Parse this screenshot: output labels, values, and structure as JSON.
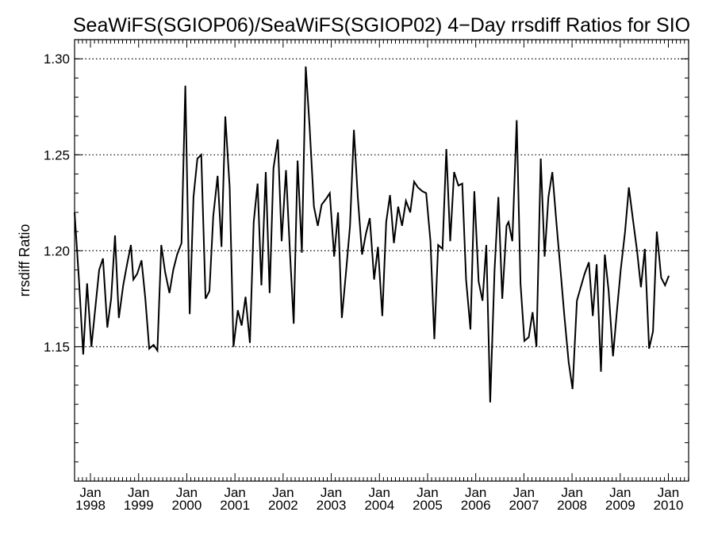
{
  "chart_data": {
    "type": "line",
    "title": "SeaWiFS(SGIOP06)/SeaWiFS(SGIOP02) 4−Day rrsdiff Ratios for SIO",
    "xlabel": "",
    "ylabel": "rrsdiff Ratio",
    "xlim": [
      1997.67,
      2010.42
    ],
    "ylim": [
      1.08,
      1.31
    ],
    "yticks": [
      {
        "value": 1.15,
        "label": "1.15"
      },
      {
        "value": 1.2,
        "label": "1.20"
      },
      {
        "value": 1.25,
        "label": "1.25"
      },
      {
        "value": 1.3,
        "label": "1.30"
      }
    ],
    "xticks": [
      {
        "value": 1998,
        "month": "Jan",
        "year": "1998"
      },
      {
        "value": 1999,
        "month": "Jan",
        "year": "1999"
      },
      {
        "value": 2000,
        "month": "Jan",
        "year": "2000"
      },
      {
        "value": 2001,
        "month": "Jan",
        "year": "2001"
      },
      {
        "value": 2002,
        "month": "Jan",
        "year": "2002"
      },
      {
        "value": 2003,
        "month": "Jan",
        "year": "2003"
      },
      {
        "value": 2004,
        "month": "Jan",
        "year": "2004"
      },
      {
        "value": 2005,
        "month": "Jan",
        "year": "2005"
      },
      {
        "value": 2006,
        "month": "Jan",
        "year": "2006"
      },
      {
        "value": 2007,
        "month": "Jan",
        "year": "2007"
      },
      {
        "value": 2008,
        "month": "Jan",
        "year": "2008"
      },
      {
        "value": 2009,
        "month": "Jan",
        "year": "2009"
      },
      {
        "value": 2010,
        "month": "Jan",
        "year": "2010"
      }
    ],
    "grid": "horizontal-dotted",
    "series": [
      {
        "color": "#000000",
        "points": [
          [
            1997.67,
            1.22
          ],
          [
            1997.76,
            1.185
          ],
          [
            1997.85,
            1.146
          ],
          [
            1997.93,
            1.183
          ],
          [
            1998.02,
            1.15
          ],
          [
            1998.1,
            1.17
          ],
          [
            1998.18,
            1.19
          ],
          [
            1998.26,
            1.196
          ],
          [
            1998.35,
            1.16
          ],
          [
            1998.43,
            1.175
          ],
          [
            1998.51,
            1.208
          ],
          [
            1998.59,
            1.165
          ],
          [
            1998.68,
            1.182
          ],
          [
            1998.76,
            1.193
          ],
          [
            1998.84,
            1.203
          ],
          [
            1998.89,
            1.185
          ],
          [
            1998.97,
            1.188
          ],
          [
            1999.06,
            1.195
          ],
          [
            1999.14,
            1.175
          ],
          [
            1999.22,
            1.149
          ],
          [
            1999.31,
            1.151
          ],
          [
            1999.39,
            1.148
          ],
          [
            1999.47,
            1.203
          ],
          [
            1999.55,
            1.189
          ],
          [
            1999.64,
            1.178
          ],
          [
            1999.72,
            1.19
          ],
          [
            1999.8,
            1.198
          ],
          [
            1999.89,
            1.204
          ],
          [
            1999.97,
            1.286
          ],
          [
            2000.06,
            1.167
          ],
          [
            2000.14,
            1.228
          ],
          [
            2000.22,
            1.248
          ],
          [
            2000.3,
            1.25
          ],
          [
            2000.39,
            1.175
          ],
          [
            2000.47,
            1.179
          ],
          [
            2000.55,
            1.218
          ],
          [
            2000.64,
            1.239
          ],
          [
            2000.72,
            1.202
          ],
          [
            2000.8,
            1.27
          ],
          [
            2000.89,
            1.233
          ],
          [
            2000.97,
            1.15
          ],
          [
            2001.06,
            1.169
          ],
          [
            2001.14,
            1.161
          ],
          [
            2001.22,
            1.176
          ],
          [
            2001.31,
            1.152
          ],
          [
            2001.39,
            1.215
          ],
          [
            2001.47,
            1.235
          ],
          [
            2001.55,
            1.182
          ],
          [
            2001.64,
            1.241
          ],
          [
            2001.72,
            1.178
          ],
          [
            2001.8,
            1.243
          ],
          [
            2001.89,
            1.258
          ],
          [
            2001.97,
            1.205
          ],
          [
            2002.06,
            1.242
          ],
          [
            2002.14,
            1.2
          ],
          [
            2002.22,
            1.162
          ],
          [
            2002.3,
            1.247
          ],
          [
            2002.39,
            1.199
          ],
          [
            2002.47,
            1.296
          ],
          [
            2002.55,
            1.265
          ],
          [
            2002.64,
            1.223
          ],
          [
            2002.72,
            1.213
          ],
          [
            2002.8,
            1.224
          ],
          [
            2002.89,
            1.227
          ],
          [
            2002.97,
            1.23
          ],
          [
            2003.06,
            1.197
          ],
          [
            2003.14,
            1.22
          ],
          [
            2003.22,
            1.165
          ],
          [
            2003.31,
            1.19
          ],
          [
            2003.39,
            1.213
          ],
          [
            2003.47,
            1.263
          ],
          [
            2003.55,
            1.228
          ],
          [
            2003.64,
            1.198
          ],
          [
            2003.72,
            1.209
          ],
          [
            2003.8,
            1.217
          ],
          [
            2003.89,
            1.185
          ],
          [
            2003.97,
            1.202
          ],
          [
            2004.06,
            1.166
          ],
          [
            2004.14,
            1.215
          ],
          [
            2004.22,
            1.229
          ],
          [
            2004.3,
            1.204
          ],
          [
            2004.39,
            1.223
          ],
          [
            2004.47,
            1.213
          ],
          [
            2004.55,
            1.226
          ],
          [
            2004.64,
            1.22
          ],
          [
            2004.72,
            1.236
          ],
          [
            2004.8,
            1.233
          ],
          [
            2004.89,
            1.231
          ],
          [
            2004.97,
            1.23
          ],
          [
            2005.06,
            1.205
          ],
          [
            2005.14,
            1.154
          ],
          [
            2005.22,
            1.203
          ],
          [
            2005.31,
            1.201
          ],
          [
            2005.39,
            1.253
          ],
          [
            2005.47,
            1.205
          ],
          [
            2005.55,
            1.241
          ],
          [
            2005.64,
            1.234
          ],
          [
            2005.72,
            1.235
          ],
          [
            2005.8,
            1.185
          ],
          [
            2005.89,
            1.159
          ],
          [
            2005.97,
            1.231
          ],
          [
            2006.06,
            1.184
          ],
          [
            2006.14,
            1.174
          ],
          [
            2006.22,
            1.203
          ],
          [
            2006.3,
            1.121
          ],
          [
            2006.39,
            1.19
          ],
          [
            2006.47,
            1.228
          ],
          [
            2006.55,
            1.175
          ],
          [
            2006.64,
            1.213
          ],
          [
            2006.68,
            1.215
          ],
          [
            2006.76,
            1.205
          ],
          [
            2006.85,
            1.268
          ],
          [
            2006.93,
            1.183
          ],
          [
            2007.01,
            1.153
          ],
          [
            2007.1,
            1.155
          ],
          [
            2007.18,
            1.168
          ],
          [
            2007.26,
            1.15
          ],
          [
            2007.35,
            1.248
          ],
          [
            2007.43,
            1.197
          ],
          [
            2007.51,
            1.228
          ],
          [
            2007.59,
            1.241
          ],
          [
            2007.68,
            1.213
          ],
          [
            2007.76,
            1.19
          ],
          [
            2007.84,
            1.166
          ],
          [
            2007.93,
            1.142
          ],
          [
            2008.01,
            1.128
          ],
          [
            2008.1,
            1.174
          ],
          [
            2008.18,
            1.181
          ],
          [
            2008.26,
            1.188
          ],
          [
            2008.35,
            1.194
          ],
          [
            2008.43,
            1.166
          ],
          [
            2008.51,
            1.193
          ],
          [
            2008.6,
            1.137
          ],
          [
            2008.68,
            1.198
          ],
          [
            2008.76,
            1.179
          ],
          [
            2008.85,
            1.145
          ],
          [
            2008.93,
            1.168
          ],
          [
            2009.01,
            1.19
          ],
          [
            2009.1,
            1.21
          ],
          [
            2009.18,
            1.233
          ],
          [
            2009.26,
            1.217
          ],
          [
            2009.35,
            1.2
          ],
          [
            2009.43,
            1.181
          ],
          [
            2009.51,
            1.201
          ],
          [
            2009.6,
            1.149
          ],
          [
            2009.68,
            1.158
          ],
          [
            2009.76,
            1.21
          ],
          [
            2009.85,
            1.186
          ],
          [
            2009.93,
            1.182
          ],
          [
            2010.01,
            1.187
          ]
        ]
      }
    ]
  }
}
